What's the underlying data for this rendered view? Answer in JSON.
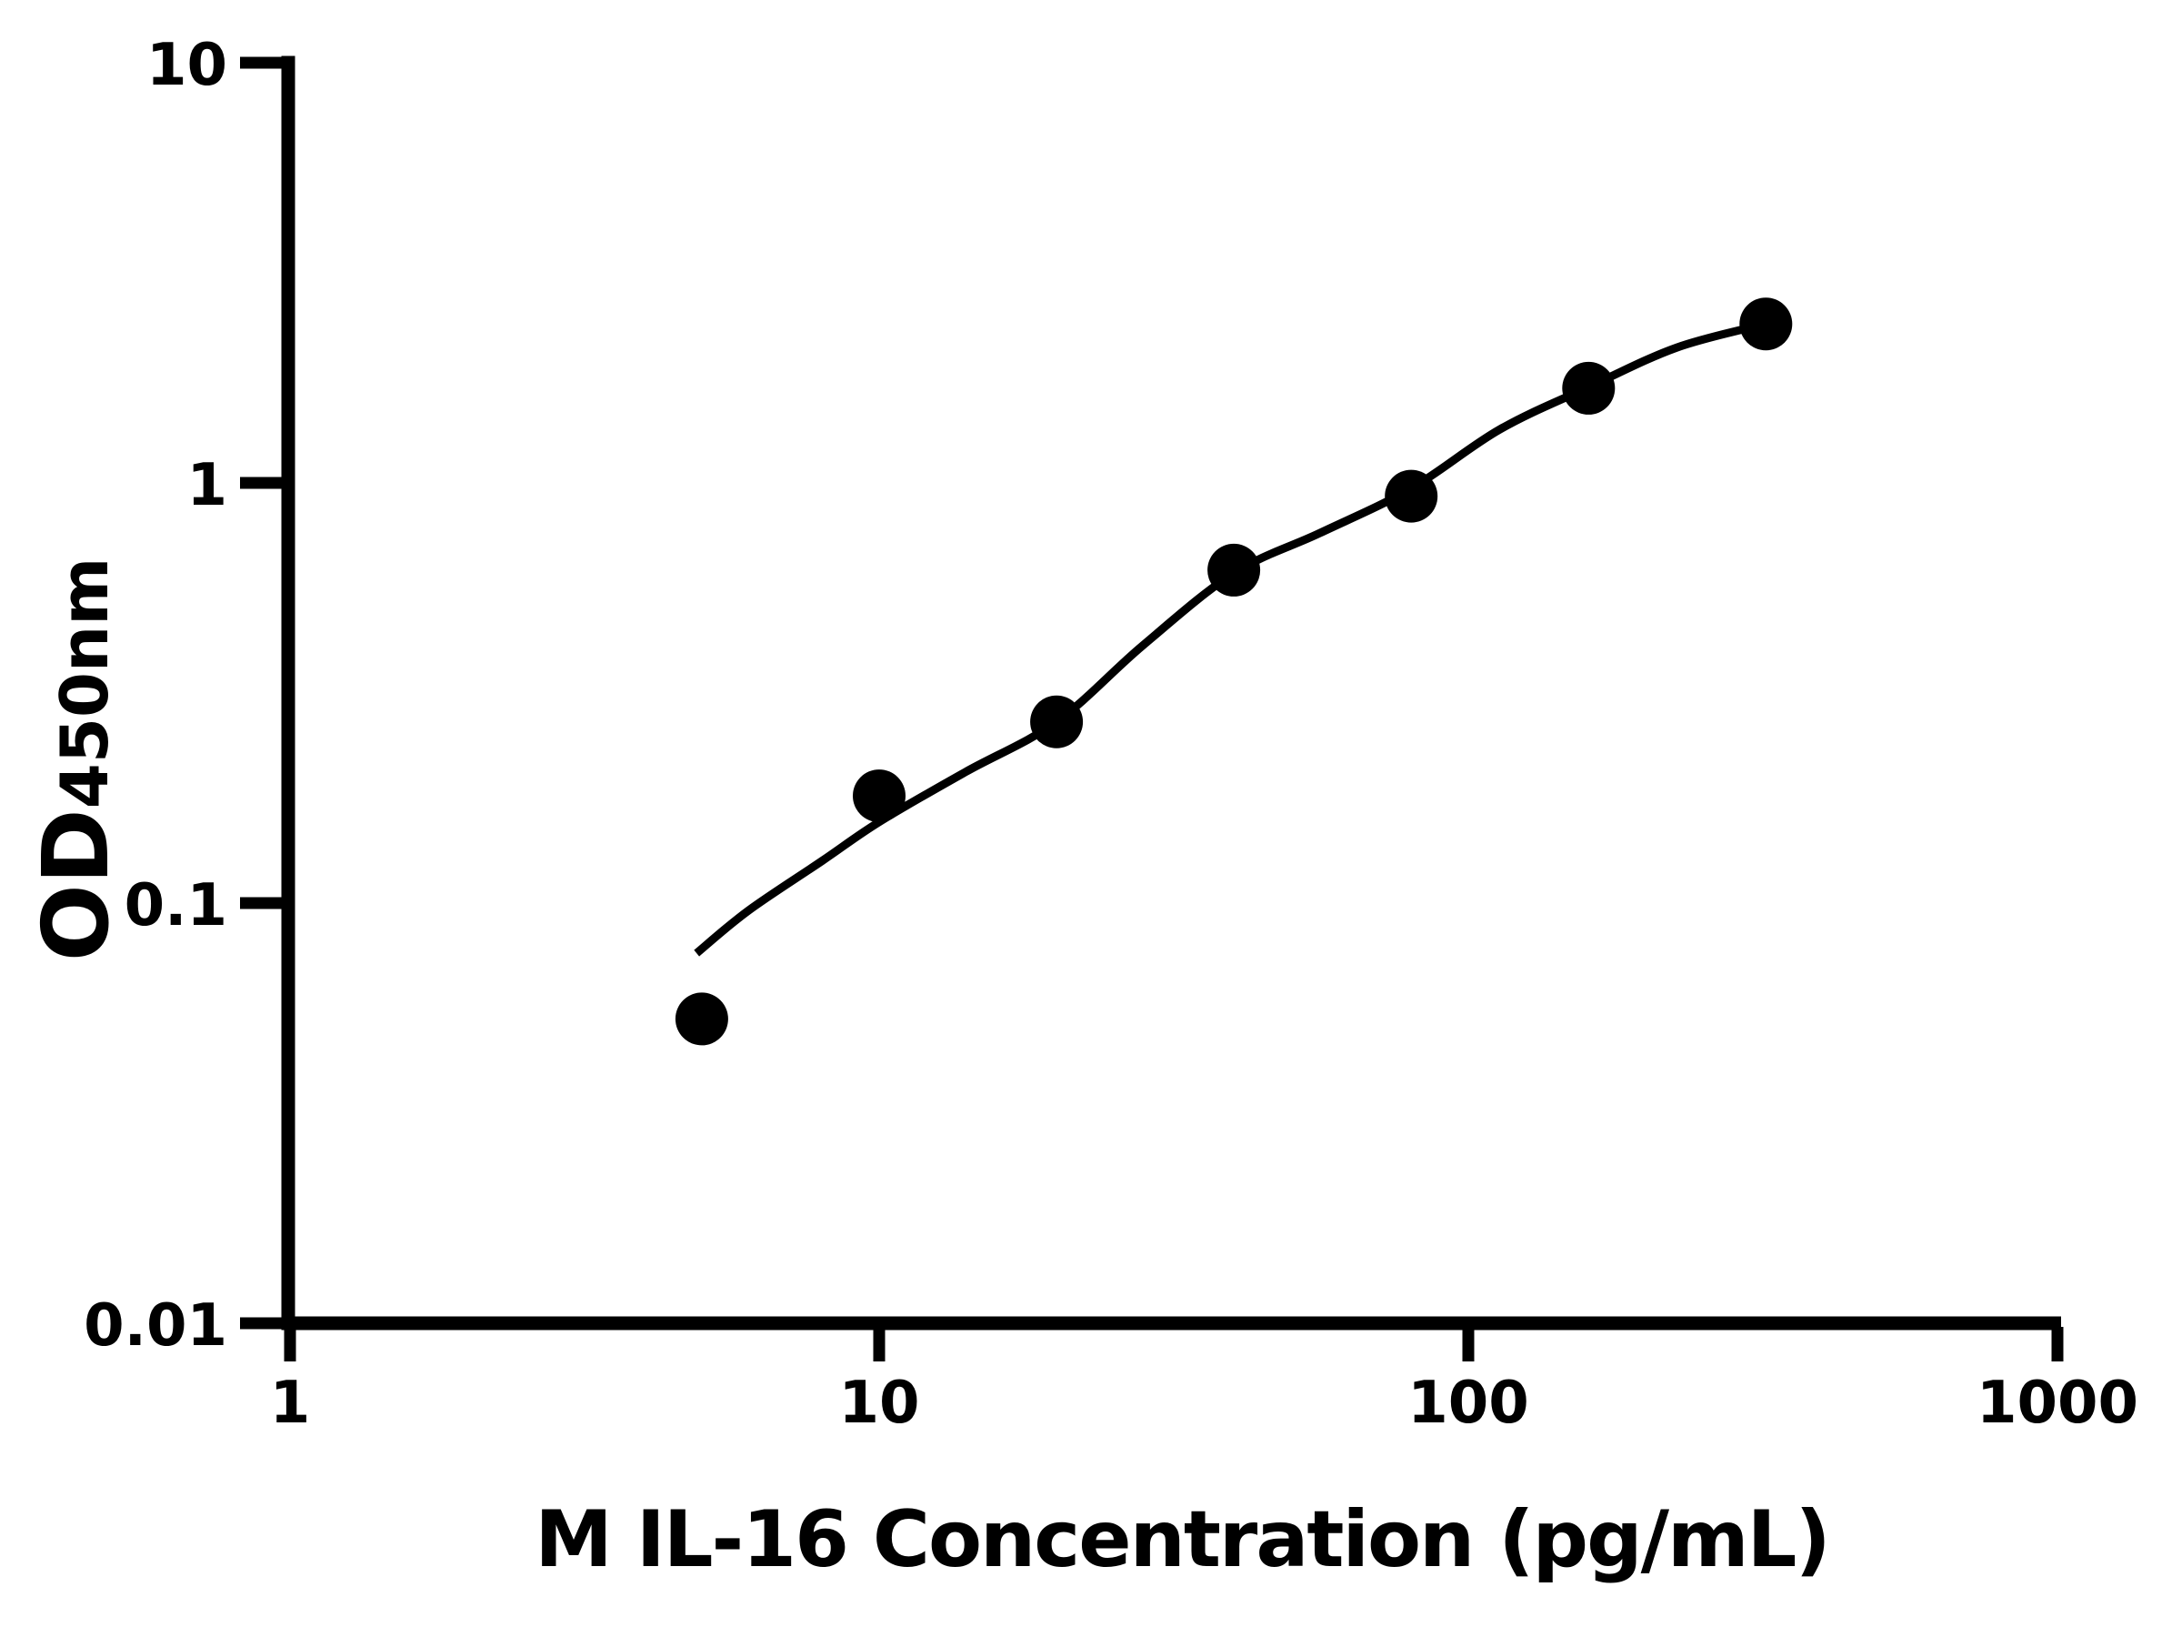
{
  "colors": {
    "foreground": "#000000",
    "background": "#ffffff"
  },
  "chart_data": {
    "type": "scatter",
    "subtype": "elisa-standard-curve",
    "title": "",
    "xlabel": "M IL-16 Concentration (pg/mL)",
    "ylabel_main": "OD",
    "ylabel_sub": "450nm",
    "x_scale": "log",
    "y_scale": "log",
    "xlim": [
      1,
      1000
    ],
    "ylim": [
      0.01,
      10
    ],
    "grid": false,
    "legend": false,
    "x_ticks": [
      {
        "value": 1,
        "label": "1"
      },
      {
        "value": 10,
        "label": "10"
      },
      {
        "value": 100,
        "label": "100"
      },
      {
        "value": 1000,
        "label": "1000"
      }
    ],
    "y_ticks": [
      {
        "value": 10,
        "label": "10"
      },
      {
        "value": 1,
        "label": "1"
      },
      {
        "value": 0.1,
        "label": "0.1"
      },
      {
        "value": 0.01,
        "label": "0.01"
      }
    ],
    "series": [
      {
        "name": "standard-points",
        "marker": "filled-circle",
        "color": "#000000",
        "points": [
          [
            5,
            0.053
          ],
          [
            10,
            0.18
          ],
          [
            20,
            0.27
          ],
          [
            40,
            0.62
          ],
          [
            80,
            0.93
          ],
          [
            160,
            1.68
          ],
          [
            320,
            2.39
          ]
        ]
      }
    ],
    "fit_curve": {
      "name": "4pl-fit",
      "color": "#000000",
      "samples": [
        [
          4.9,
          0.076
        ],
        [
          6,
          0.096
        ],
        [
          8,
          0.126
        ],
        [
          10,
          0.156
        ],
        [
          14,
          0.205
        ],
        [
          20,
          0.27
        ],
        [
          28,
          0.41
        ],
        [
          40,
          0.61
        ],
        [
          56,
          0.76
        ],
        [
          80,
          0.97
        ],
        [
          113,
          1.34
        ],
        [
          160,
          1.69
        ],
        [
          226,
          2.1
        ],
        [
          320,
          2.39
        ]
      ]
    }
  }
}
